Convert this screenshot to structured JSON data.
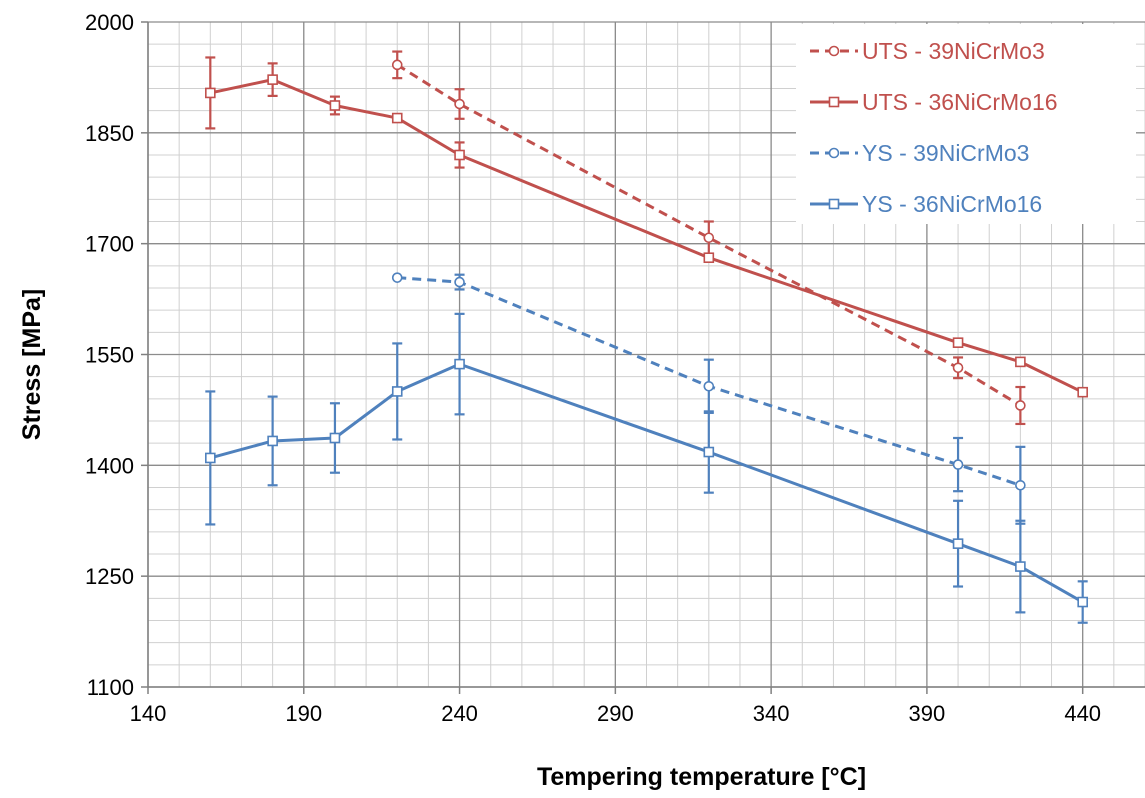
{
  "chart_data": {
    "type": "line",
    "title": "",
    "xlabel": "Tempering temperature [°C]",
    "ylabel": "Stress [MPa]",
    "xlim": [
      140,
      460
    ],
    "ylim": [
      1100,
      2000
    ],
    "xticks": [
      140,
      190,
      240,
      290,
      340,
      390,
      440
    ],
    "yticks": [
      1100,
      1250,
      1400,
      1550,
      1700,
      1850,
      2000
    ],
    "x_minor_step": 10,
    "y_minor_step": 30,
    "grid": true,
    "legend_position": "top-right",
    "series": [
      {
        "name": "UTS - 39NiCrMo3",
        "color": "#C0504D",
        "line_style": "dashed",
        "marker": "circle",
        "x": [
          220,
          240,
          320,
          400,
          420
        ],
        "y": [
          1942,
          1889,
          1708,
          1532,
          1481
        ],
        "err": [
          18,
          20,
          22,
          14,
          25
        ]
      },
      {
        "name": "UTS - 36NiCrMo16",
        "color": "#C0504D",
        "line_style": "solid",
        "marker": "square",
        "x": [
          160,
          180,
          200,
          220,
          240,
          320,
          400,
          420,
          440
        ],
        "y": [
          1904,
          1922,
          1887,
          1870,
          1820,
          1681,
          1566,
          1540,
          1499
        ],
        "err": [
          48,
          22,
          12,
          0,
          17,
          0,
          0,
          0,
          0
        ]
      },
      {
        "name": "YS - 39NiCrMo3",
        "color": "#4F81BD",
        "line_style": "dashed",
        "marker": "circle",
        "x": [
          220,
          240,
          320,
          400,
          420
        ],
        "y": [
          1654,
          1648,
          1507,
          1401,
          1373
        ],
        "err": [
          0,
          10,
          36,
          36,
          52
        ]
      },
      {
        "name": "YS - 36NiCrMo16",
        "color": "#4F81BD",
        "line_style": "solid",
        "marker": "square",
        "x": [
          160,
          180,
          200,
          220,
          240,
          320,
          400,
          420,
          440
        ],
        "y": [
          1410,
          1433,
          1437,
          1500,
          1537,
          1418,
          1294,
          1263,
          1215
        ],
        "err": [
          90,
          60,
          47,
          65,
          68,
          55,
          58,
          62,
          28
        ]
      }
    ]
  }
}
